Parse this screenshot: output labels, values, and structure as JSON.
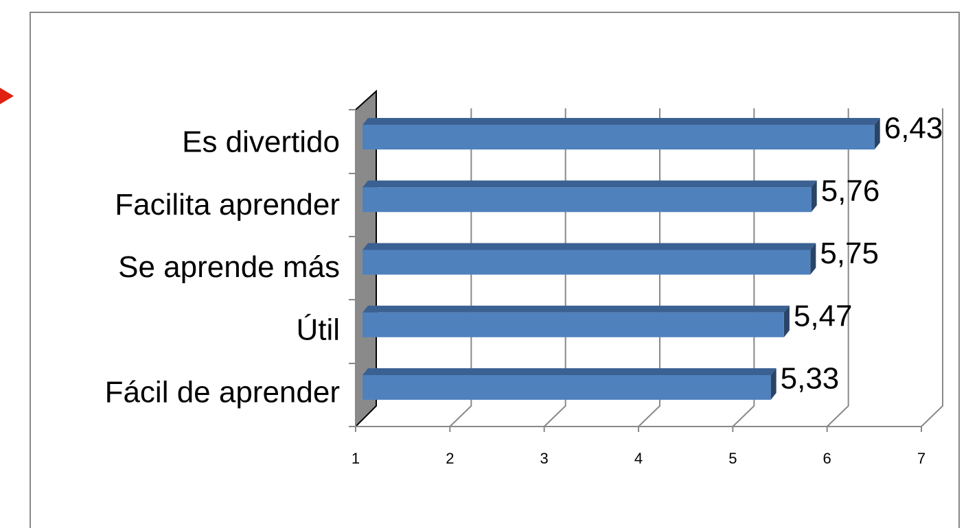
{
  "chart_data": {
    "type": "bar3d_horizontal",
    "categories": [
      "Es divertido",
      "Facilita aprender",
      "Se aprende más",
      "Útil",
      "Fácil de aprender"
    ],
    "values": [
      6.43,
      5.76,
      5.75,
      5.47,
      5.33
    ],
    "value_labels": [
      "6,43",
      "5,76",
      "5,75",
      "5,47",
      "5,33"
    ],
    "color": "#4f81bd",
    "xlim": [
      1,
      7
    ],
    "xticks": [
      1,
      2,
      3,
      4,
      5,
      6,
      7
    ],
    "grid": true
  }
}
